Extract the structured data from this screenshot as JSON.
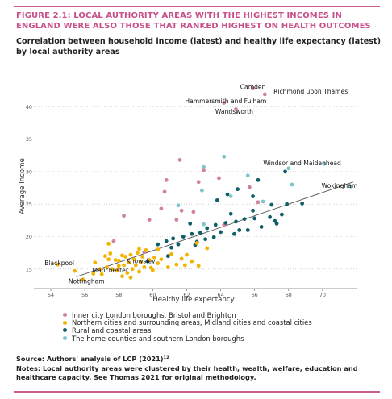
{
  "figure": {
    "title": "FIGURE 2.1: LOCAL AUTHORITY AREAS WITH THE HIGHEST INCOMES IN ENGLAND WERE ALSO THOSE THAT RANKED HIGHEST ON HEALTH OUTCOMES",
    "subtitle": "Correlation between household income (latest) and healthy life expectancy (latest) by local authority areas",
    "source": "Source: Authors' analysis of LCP (2021)¹²",
    "notes": "Notes: Local authority areas were clustered by their health, wealth, welfare, education and healthcare capacity. See Thomas 2021 for original methodology."
  },
  "colors": {
    "accent": "#c85c8c",
    "inner_london": "#d2829e",
    "northern": "#f2b400",
    "rural_coastal": "#0f5f66",
    "home_counties": "#7cc6cc"
  },
  "chart_data": {
    "type": "scatter",
    "xlabel": "Healthy life expectancy",
    "ylabel": "Average Income",
    "xlim": [
      53,
      72
    ],
    "ylim": [
      12,
      44
    ],
    "xticks": [
      54,
      56,
      58,
      60,
      62,
      64,
      66,
      68,
      70
    ],
    "yticks": [
      15,
      20,
      25,
      30,
      35,
      40
    ],
    "trendline": [
      [
        55.5,
        13.8
      ],
      [
        71.8,
        28.4
      ]
    ],
    "legend": [
      {
        "key": "inner_london",
        "label": "Inner city London boroughs, Bristol and Brighton"
      },
      {
        "key": "northern",
        "label": "Northern cities and surrounding areas, Midland cities and coastal cities"
      },
      {
        "key": "rural_coastal",
        "label": "Rural and coastal areas"
      },
      {
        "key": "home_counties",
        "label": "The home counties and southern London boroughs"
      }
    ],
    "annotations": [
      {
        "text": "Camden",
        "x": 65.9,
        "y": 42.7
      },
      {
        "text": "Richmond upon Thames",
        "x": 69.3,
        "y": 42.0
      },
      {
        "text": "Hammersmith and Fulham",
        "x": 64.3,
        "y": 40.5
      },
      {
        "text": "Wandsworth",
        "x": 64.8,
        "y": 38.9
      },
      {
        "text": "Windsor and Maidenhead",
        "x": 68.8,
        "y": 31.0
      },
      {
        "text": "Wokingham",
        "x": 71.0,
        "y": 27.5
      },
      {
        "text": "Blackpool",
        "x": 54.5,
        "y": 15.6
      },
      {
        "text": "Knowsley",
        "x": 59.3,
        "y": 15.9
      },
      {
        "text": "Manchester",
        "x": 57.5,
        "y": 14.5
      },
      {
        "text": "Nottingham",
        "x": 56.1,
        "y": 12.8
      }
    ],
    "series": [
      {
        "key": "inner_london",
        "points": [
          [
            65.9,
            42.8
          ],
          [
            66.6,
            41.9
          ],
          [
            64.2,
            40.6
          ],
          [
            64.9,
            39.6
          ],
          [
            61.6,
            31.8
          ],
          [
            60.8,
            28.7
          ],
          [
            62.7,
            28.4
          ],
          [
            60.7,
            26.9
          ],
          [
            60.5,
            24.3
          ],
          [
            61.7,
            24.0
          ],
          [
            63.0,
            30.2
          ],
          [
            63.9,
            29.0
          ],
          [
            58.3,
            23.2
          ],
          [
            59.8,
            22.6
          ],
          [
            61.4,
            22.6
          ],
          [
            64.2,
            21.8
          ],
          [
            66.2,
            25.3
          ],
          [
            57.7,
            19.3
          ],
          [
            65.7,
            27.6
          ],
          [
            59.5,
            17.6
          ],
          [
            62.4,
            23.8
          ]
        ]
      },
      {
        "key": "home_counties",
        "points": [
          [
            64.2,
            32.3
          ],
          [
            63.0,
            30.7
          ],
          [
            65.6,
            29.4
          ],
          [
            68.0,
            30.5
          ],
          [
            70.1,
            31.2
          ],
          [
            71.7,
            27.7
          ],
          [
            62.9,
            27.1
          ],
          [
            64.6,
            26.2
          ],
          [
            61.5,
            24.8
          ],
          [
            63.0,
            21.9
          ],
          [
            68.2,
            28.0
          ],
          [
            66.5,
            25.4
          ]
        ]
      },
      {
        "key": "rural_coastal",
        "points": [
          [
            67.8,
            30.0
          ],
          [
            66.2,
            28.7
          ],
          [
            65.0,
            27.3
          ],
          [
            64.4,
            26.5
          ],
          [
            65.9,
            26.2
          ],
          [
            63.8,
            25.6
          ],
          [
            67.0,
            24.9
          ],
          [
            67.6,
            23.4
          ],
          [
            66.9,
            23.0
          ],
          [
            66.0,
            22.8
          ],
          [
            65.4,
            22.7
          ],
          [
            64.9,
            22.3
          ],
          [
            64.3,
            22.1
          ],
          [
            63.7,
            21.8
          ],
          [
            63.2,
            21.3
          ],
          [
            62.8,
            20.6
          ],
          [
            62.3,
            20.4
          ],
          [
            61.8,
            20.0
          ],
          [
            61.2,
            19.7
          ],
          [
            60.8,
            19.3
          ],
          [
            60.3,
            18.8
          ],
          [
            61.1,
            18.3
          ],
          [
            62.5,
            18.7
          ],
          [
            63.6,
            19.9
          ],
          [
            64.8,
            20.4
          ],
          [
            65.6,
            21.0
          ],
          [
            66.4,
            21.5
          ],
          [
            67.2,
            22.4
          ],
          [
            67.9,
            25.0
          ],
          [
            68.8,
            25.1
          ],
          [
            67.3,
            22.0
          ],
          [
            65.1,
            21.0
          ],
          [
            64.0,
            20.7
          ],
          [
            63.1,
            19.6
          ],
          [
            62.6,
            19.2
          ],
          [
            61.5,
            18.8
          ],
          [
            60.9,
            17.0
          ],
          [
            59.7,
            16.2
          ],
          [
            64.6,
            23.5
          ],
          [
            65.9,
            24.0
          ],
          [
            62.2,
            22.0
          ]
        ]
      },
      {
        "key": "northern",
        "points": [
          [
            54.4,
            15.7
          ],
          [
            55.4,
            14.7
          ],
          [
            55.9,
            13.4
          ],
          [
            56.5,
            14.3
          ],
          [
            56.9,
            15.0
          ],
          [
            57.0,
            14.2
          ],
          [
            57.3,
            15.3
          ],
          [
            57.4,
            16.5
          ],
          [
            57.5,
            17.4
          ],
          [
            57.6,
            15.0
          ],
          [
            57.8,
            16.4
          ],
          [
            57.9,
            14.8
          ],
          [
            58.0,
            16.3
          ],
          [
            58.0,
            15.5
          ],
          [
            58.2,
            13.9
          ],
          [
            58.2,
            17.1
          ],
          [
            58.3,
            15.6
          ],
          [
            58.4,
            16.9
          ],
          [
            58.5,
            14.4
          ],
          [
            58.6,
            16.0
          ],
          [
            58.7,
            17.2
          ],
          [
            58.8,
            15.0
          ],
          [
            58.9,
            16.5
          ],
          [
            59.0,
            15.6
          ],
          [
            59.1,
            17.5
          ],
          [
            59.2,
            14.6
          ],
          [
            59.3,
            16.1
          ],
          [
            59.4,
            16.9
          ],
          [
            59.5,
            15.3
          ],
          [
            59.6,
            17.9
          ],
          [
            59.8,
            16.4
          ],
          [
            59.9,
            15.2
          ],
          [
            60.1,
            16.8
          ],
          [
            60.3,
            18.0
          ],
          [
            60.5,
            16.5
          ],
          [
            60.9,
            15.3
          ],
          [
            61.1,
            17.3
          ],
          [
            61.4,
            15.7
          ],
          [
            61.7,
            16.6
          ],
          [
            62.0,
            17.2
          ],
          [
            62.3,
            16.2
          ],
          [
            62.7,
            15.5
          ],
          [
            63.2,
            18.2
          ],
          [
            57.4,
            18.9
          ],
          [
            56.6,
            16.0
          ],
          [
            58.7,
            13.7
          ],
          [
            60.0,
            14.8
          ],
          [
            61.9,
            15.6
          ],
          [
            62.6,
            19.0
          ],
          [
            60.3,
            15.9
          ],
          [
            57.2,
            17.0
          ],
          [
            59.2,
            18.1
          ]
        ]
      }
    ]
  }
}
